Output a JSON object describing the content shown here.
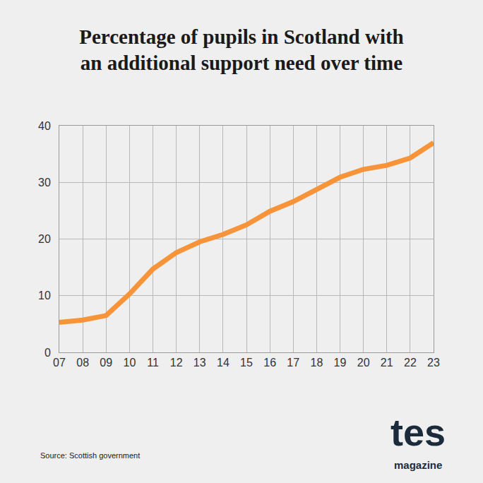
{
  "chart_data": {
    "type": "line",
    "title": "Percentage of pupils in Scotland with an additional support need over time",
    "categories": [
      "07",
      "08",
      "09",
      "10",
      "11",
      "12",
      "13",
      "14",
      "15",
      "16",
      "17",
      "18",
      "19",
      "20",
      "21",
      "22",
      "23"
    ],
    "values": [
      5.3,
      5.7,
      6.5,
      10.3,
      14.7,
      17.6,
      19.5,
      20.8,
      22.5,
      24.9,
      26.6,
      28.7,
      30.9,
      32.3,
      33.0,
      34.3,
      37.0
    ],
    "color": "#f7943a",
    "ylim": [
      0,
      40
    ],
    "yticks": [
      0,
      10,
      20,
      30,
      40
    ],
    "grid": true,
    "annotations": [
      "Source: Scottish government",
      "tes",
      "magazine"
    ]
  }
}
